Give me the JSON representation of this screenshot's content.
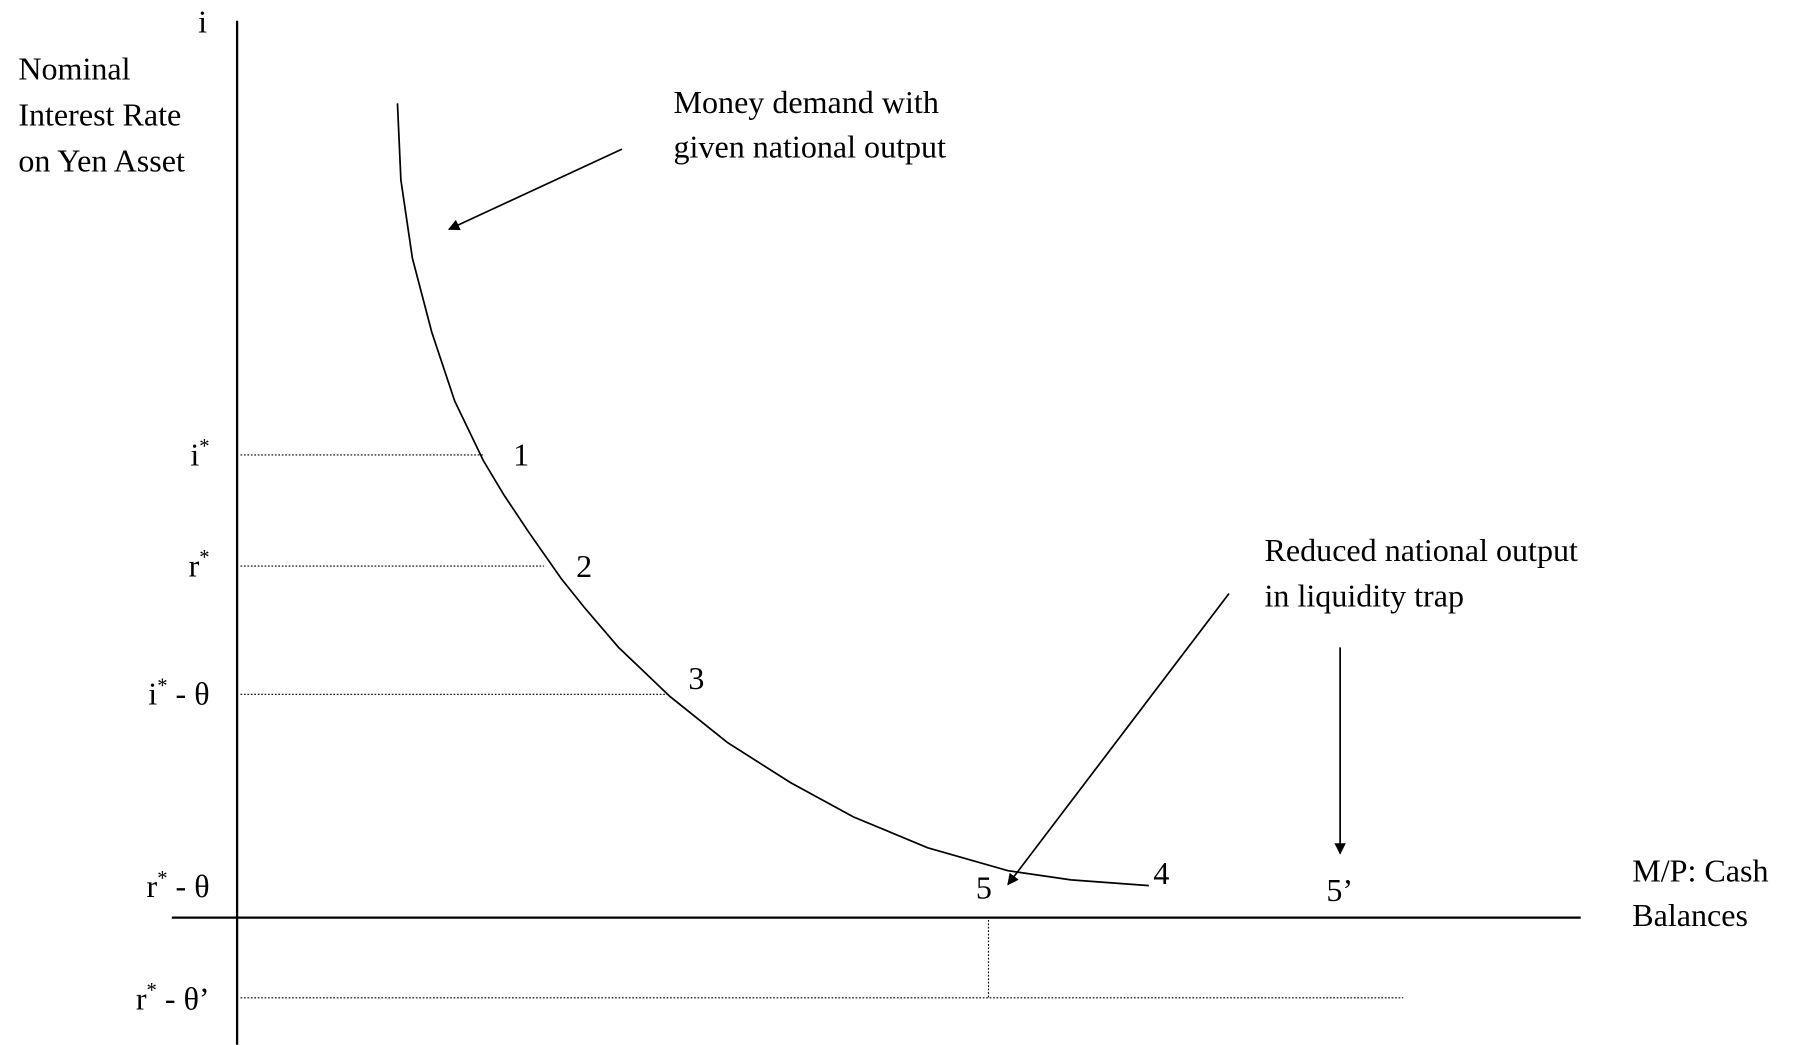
{
  "y_axis": {
    "symbol": "i",
    "label": [
      "Nominal",
      "Interest Rate",
      "on Yen Asset"
    ]
  },
  "x_axis": {
    "label": [
      "M/P: Cash",
      "Balances"
    ]
  },
  "levels": [
    {
      "base": "i",
      "sup": "*",
      "suffix": ""
    },
    {
      "base": "r",
      "sup": "*",
      "suffix": ""
    },
    {
      "base": "i",
      "sup": "*",
      "suffix": " - θ"
    },
    {
      "base": "r",
      "sup": "*",
      "suffix": " - θ"
    },
    {
      "base": "r",
      "sup": "*",
      "suffix": " - θ’"
    }
  ],
  "points": [
    "1",
    "2",
    "3",
    "4",
    "5",
    "5’"
  ],
  "annotations": {
    "money_demand": [
      "Money demand with",
      "given national output"
    ],
    "reduced_output": [
      "Reduced national output",
      "in liquidity trap"
    ]
  }
}
